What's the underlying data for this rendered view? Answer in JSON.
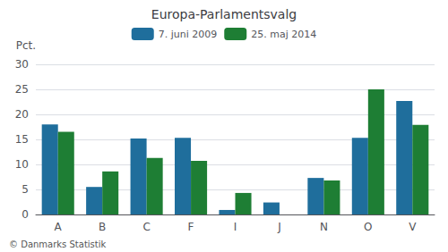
{
  "chart_data": {
    "type": "bar",
    "title": "Europa-Parlamentsvalg",
    "categories": [
      "A",
      "B",
      "C",
      "F",
      "I",
      "J",
      "N",
      "O",
      "V"
    ],
    "series": [
      {
        "name": "7. juni 2009",
        "color": "#1f6e9c",
        "values": [
          18.0,
          5.5,
          15.2,
          15.3,
          0.9,
          2.4,
          7.3,
          15.3,
          22.7
        ]
      },
      {
        "name": "25. maj 2014",
        "color": "#1e7e34",
        "values": [
          16.5,
          8.6,
          11.3,
          10.7,
          4.3,
          0.0,
          6.8,
          25.0,
          17.9
        ]
      }
    ],
    "ylabel": "Pct.",
    "ylim": [
      0,
      30
    ],
    "yticks": [
      0,
      5,
      10,
      15,
      20,
      25,
      30
    ],
    "grid": true,
    "legend": "top",
    "annotations": [
      "© Danmarks Statistik"
    ]
  }
}
